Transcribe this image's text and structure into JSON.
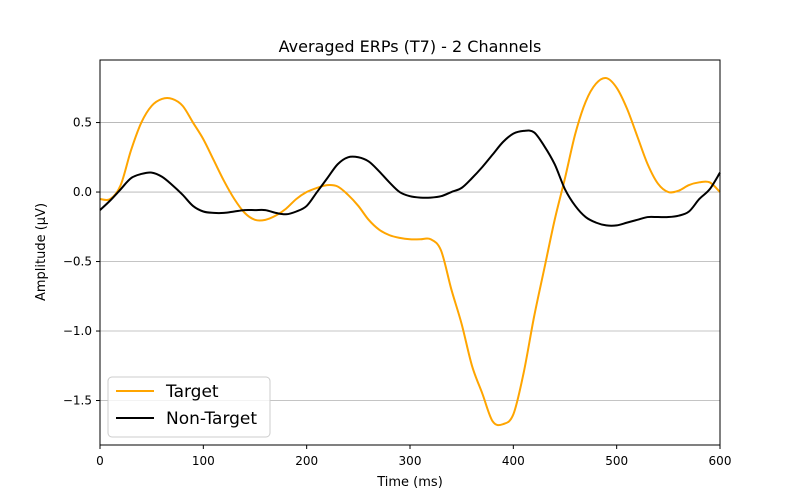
{
  "chart_data": {
    "type": "line",
    "title": "Averaged ERPs (T7) - 2 Channels",
    "xlabel": "Time (ms)",
    "ylabel": "Amplitude (μV)",
    "xlim": [
      0,
      600
    ],
    "ylim": [
      -1.82,
      0.95
    ],
    "x_ticks": [
      0,
      100,
      200,
      300,
      400,
      500,
      600
    ],
    "y_ticks": [
      -1.5,
      -1.0,
      -0.5,
      0.0,
      0.5
    ],
    "y_tick_labels": [
      "−1.5",
      "−1.0",
      "−0.5",
      "0.0",
      "0.5"
    ],
    "grid": "horizontal",
    "legend_position": "lower-left",
    "series": [
      {
        "name": "Target",
        "color": "#FFA500",
        "x": [
          0,
          10,
          20,
          30,
          40,
          50,
          60,
          70,
          80,
          90,
          100,
          110,
          120,
          130,
          140,
          150,
          160,
          170,
          180,
          190,
          200,
          210,
          220,
          230,
          240,
          250,
          260,
          270,
          280,
          290,
          300,
          310,
          320,
          330,
          340,
          350,
          360,
          370,
          380,
          390,
          400,
          410,
          420,
          430,
          440,
          450,
          460,
          470,
          480,
          490,
          500,
          510,
          520,
          530,
          540,
          550,
          560,
          570,
          580,
          590,
          600
        ],
        "y": [
          -0.05,
          -0.05,
          0.05,
          0.3,
          0.5,
          0.62,
          0.67,
          0.67,
          0.62,
          0.5,
          0.38,
          0.23,
          0.08,
          -0.05,
          -0.15,
          -0.2,
          -0.2,
          -0.17,
          -0.12,
          -0.05,
          0.0,
          0.03,
          0.05,
          0.04,
          -0.02,
          -0.1,
          -0.2,
          -0.27,
          -0.31,
          -0.33,
          -0.34,
          -0.34,
          -0.34,
          -0.42,
          -0.7,
          -0.95,
          -1.25,
          -1.45,
          -1.65,
          -1.67,
          -1.6,
          -1.3,
          -0.9,
          -0.55,
          -0.2,
          0.1,
          0.42,
          0.65,
          0.78,
          0.82,
          0.75,
          0.6,
          0.4,
          0.2,
          0.06,
          0.0,
          0.01,
          0.05,
          0.07,
          0.07,
          0.0
        ]
      },
      {
        "name": "Non-Target",
        "color": "#000000",
        "x": [
          0,
          10,
          20,
          30,
          40,
          50,
          60,
          70,
          80,
          90,
          100,
          110,
          120,
          130,
          140,
          150,
          160,
          170,
          180,
          190,
          200,
          210,
          220,
          230,
          240,
          250,
          260,
          270,
          280,
          290,
          300,
          310,
          320,
          330,
          340,
          350,
          360,
          370,
          380,
          390,
          400,
          410,
          420,
          430,
          440,
          450,
          460,
          470,
          480,
          490,
          500,
          510,
          520,
          530,
          540,
          550,
          560,
          570,
          580,
          590,
          600
        ],
        "y": [
          -0.13,
          -0.06,
          0.02,
          0.1,
          0.13,
          0.14,
          0.11,
          0.05,
          -0.02,
          -0.1,
          -0.14,
          -0.15,
          -0.15,
          -0.14,
          -0.13,
          -0.13,
          -0.13,
          -0.15,
          -0.16,
          -0.14,
          -0.1,
          0.0,
          0.1,
          0.2,
          0.25,
          0.25,
          0.22,
          0.15,
          0.07,
          0.0,
          -0.03,
          -0.04,
          -0.04,
          -0.03,
          0.0,
          0.03,
          0.1,
          0.18,
          0.27,
          0.36,
          0.42,
          0.44,
          0.43,
          0.33,
          0.2,
          0.02,
          -0.1,
          -0.18,
          -0.22,
          -0.24,
          -0.24,
          -0.22,
          -0.2,
          -0.18,
          -0.18,
          -0.18,
          -0.17,
          -0.14,
          -0.05,
          0.02,
          0.14
        ]
      }
    ]
  }
}
